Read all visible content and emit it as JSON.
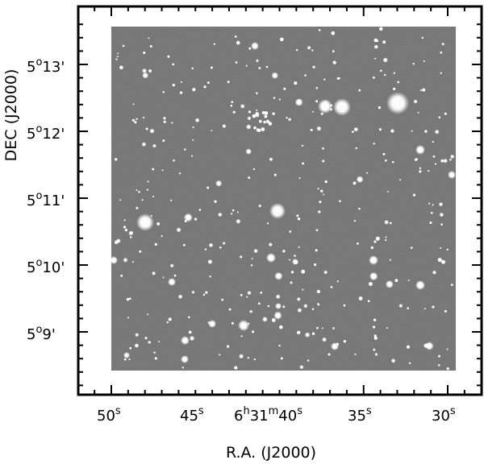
{
  "image": {
    "subject": "grayscale astronomical sky image with a dense star field",
    "colors": {
      "background": "#ffffff",
      "frame": "#000000",
      "sky": "#6f6f6f",
      "stars": "#ffffff"
    }
  },
  "axes": {
    "xlabel": "R.A. (J2000)",
    "ylabel": "DEC (J2000)",
    "x_ticks": [
      {
        "value": "50",
        "sup": "s"
      },
      {
        "value": "45",
        "sup": "s"
      },
      {
        "value": "6",
        "sup": "h",
        "value2": "31",
        "sup2": "m",
        "value3": "40",
        "sup3": "s"
      },
      {
        "value": "35",
        "sup": "s"
      },
      {
        "value": "30",
        "sup": "s"
      }
    ],
    "y_ticks": [
      {
        "deg": "5",
        "sup": "o",
        "min": "13'"
      },
      {
        "deg": "5",
        "sup": "o",
        "min": "12'"
      },
      {
        "deg": "5",
        "sup": "o",
        "min": "11'"
      },
      {
        "deg": "5",
        "sup": "o",
        "min": "10'"
      },
      {
        "deg": "5",
        "sup": "o",
        "min": "9'"
      }
    ],
    "x_major_tick_count": 5,
    "y_major_tick_count": 5,
    "minor_ticks_between_majors": 4
  }
}
